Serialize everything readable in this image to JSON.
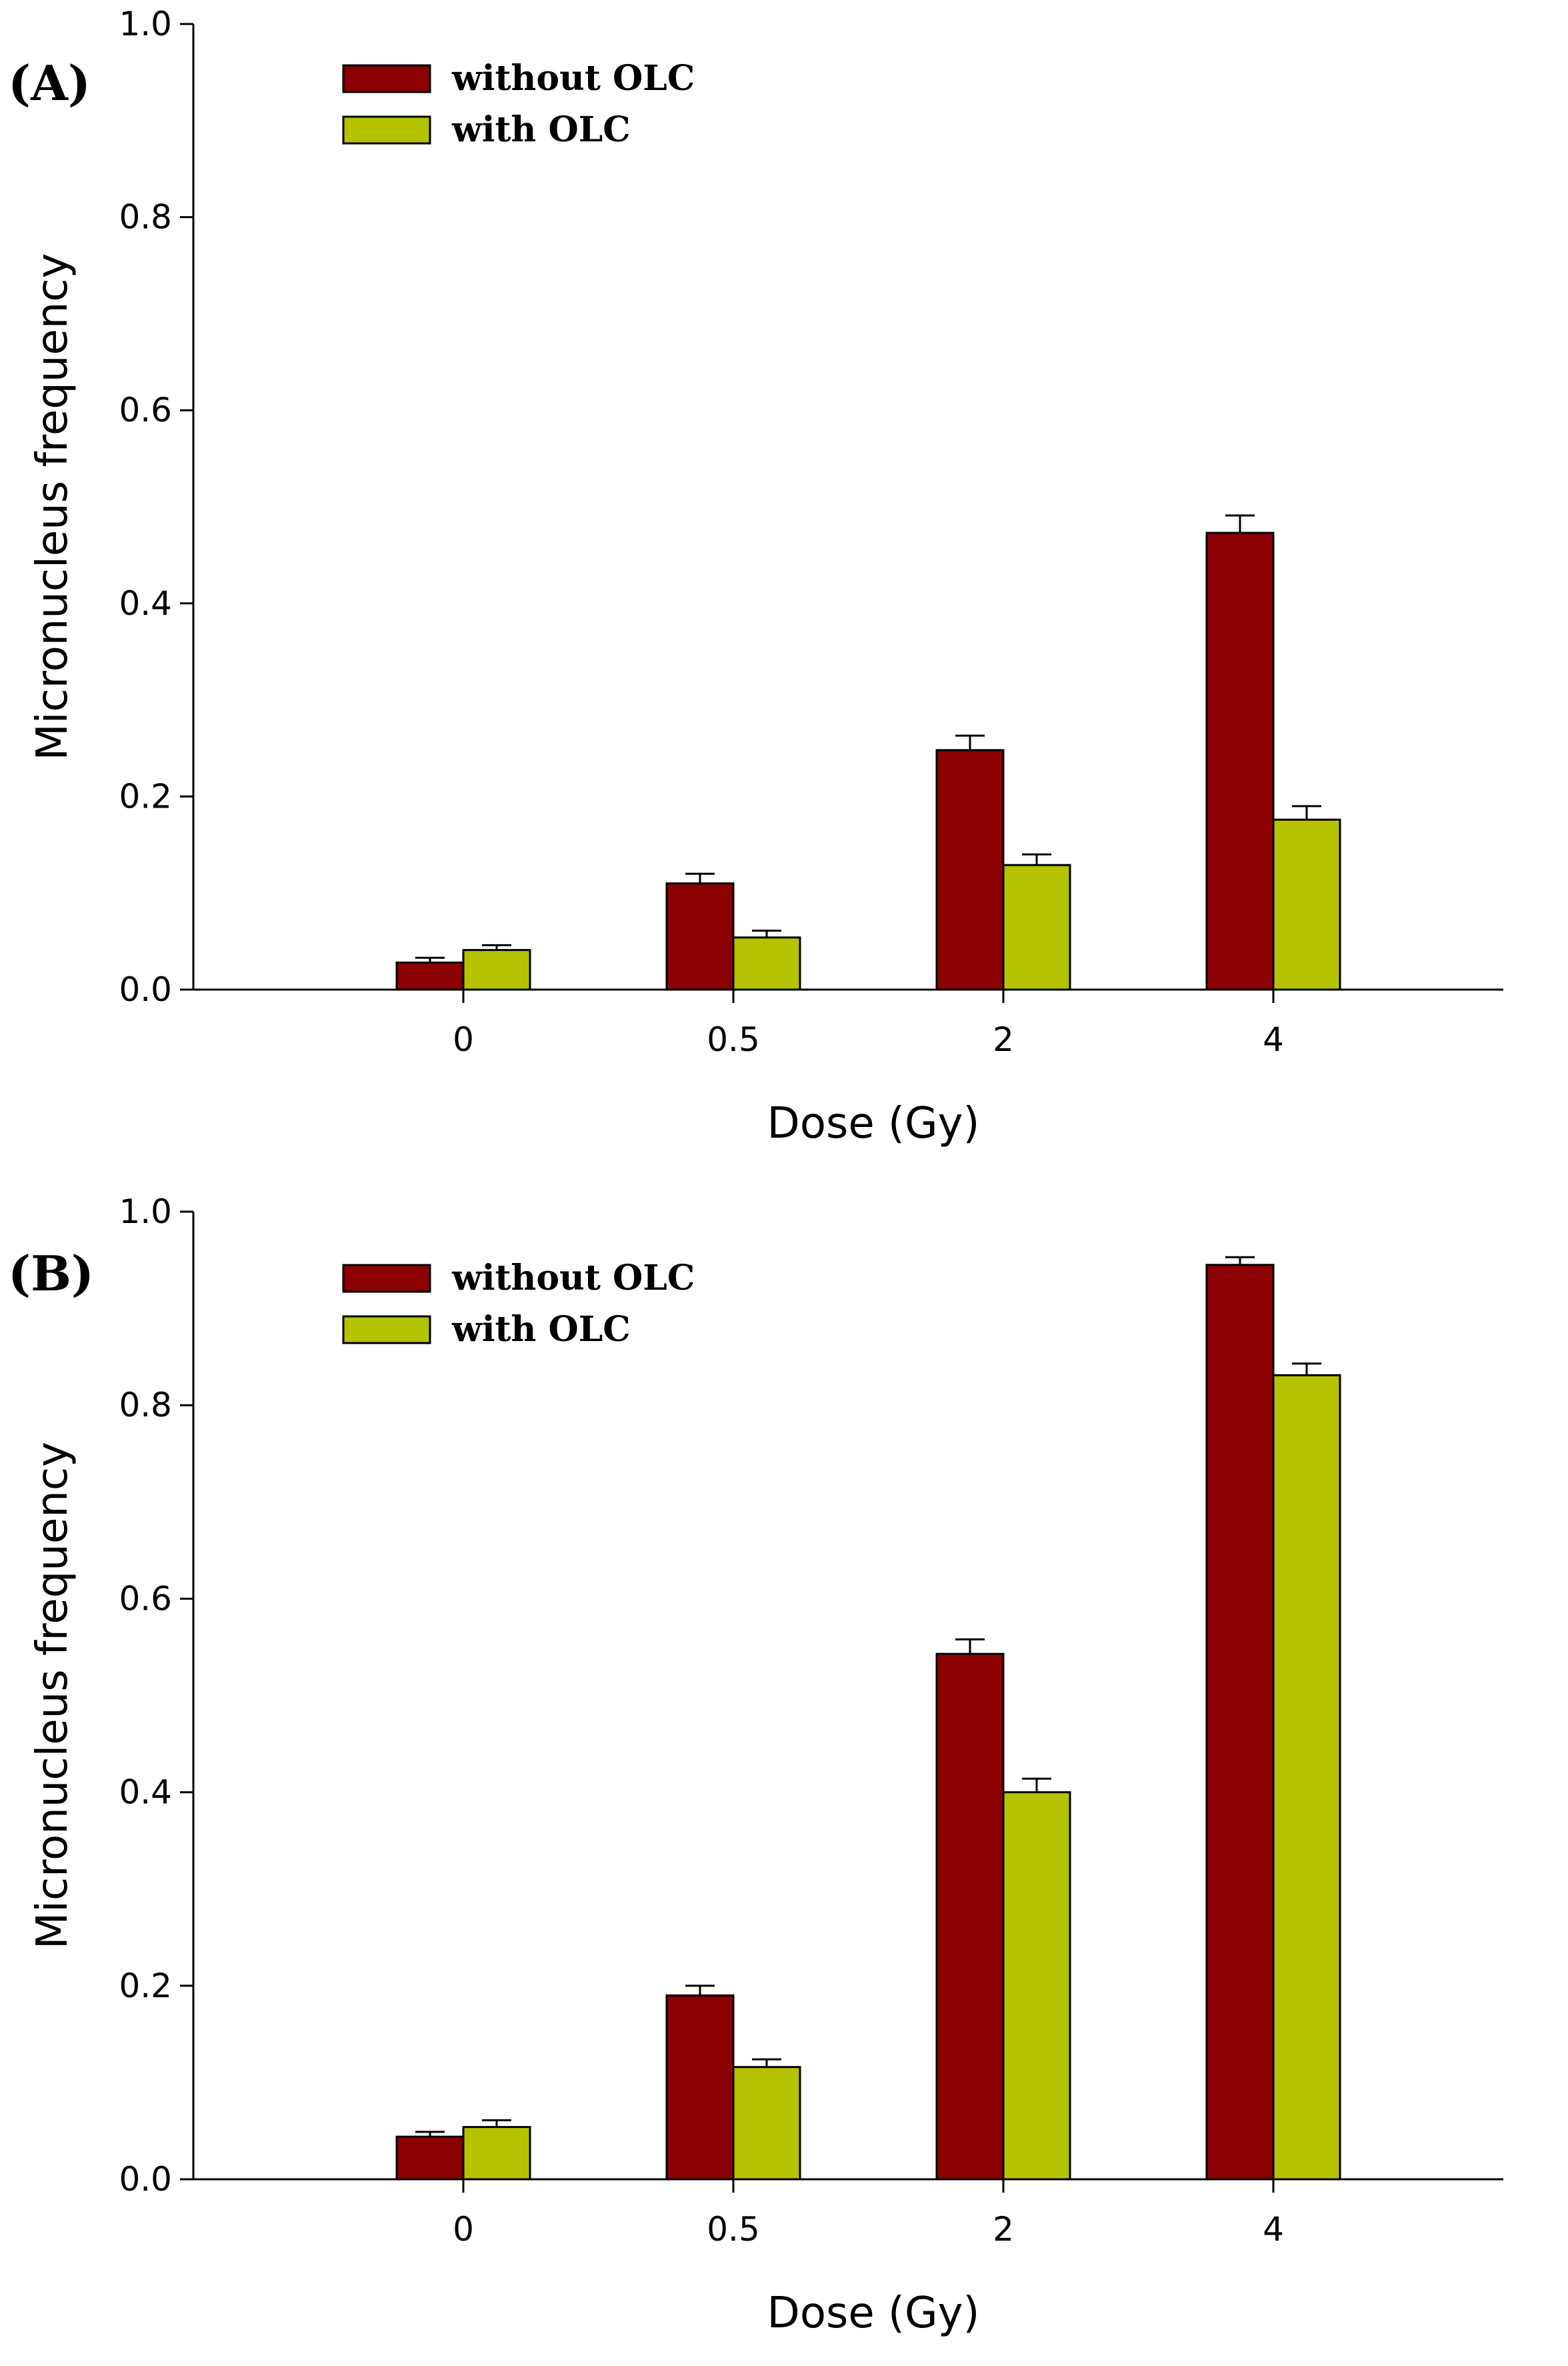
{
  "chart_data": [
    {
      "type": "bar",
      "panel_label": "(A)",
      "categories": [
        "0",
        "0.5",
        "2",
        "4"
      ],
      "series": [
        {
          "name": "without OLC",
          "color": "#8B0000",
          "values": [
            0.028,
            0.11,
            0.248,
            0.473
          ],
          "errors": [
            0.005,
            0.01,
            0.015,
            0.018
          ]
        },
        {
          "name": "with OLC",
          "color": "#B5C200",
          "values": [
            0.041,
            0.054,
            0.129,
            0.176
          ],
          "errors": [
            0.005,
            0.007,
            0.011,
            0.014
          ]
        }
      ],
      "xlabel": "Dose (Gy)",
      "ylabel": "Micronucleus frequency",
      "ylim": [
        0,
        1.0
      ],
      "yticks": [
        "0.0",
        "0.2",
        "0.4",
        "0.6",
        "0.8",
        "1.0"
      ],
      "legend_position": "top-left",
      "grid": false
    },
    {
      "type": "bar",
      "panel_label": "(B)",
      "categories": [
        "0",
        "0.5",
        "2",
        "4"
      ],
      "series": [
        {
          "name": "without OLC",
          "color": "#8B0000",
          "values": [
            0.044,
            0.19,
            0.543,
            0.945
          ],
          "errors": [
            0.005,
            0.01,
            0.015,
            0.008
          ]
        },
        {
          "name": "with OLC",
          "color": "#B5C200",
          "values": [
            0.054,
            0.116,
            0.4,
            0.831
          ],
          "errors": [
            0.007,
            0.008,
            0.014,
            0.012
          ]
        }
      ],
      "xlabel": "Dose (Gy)",
      "ylabel": "Micronucleus frequency",
      "ylim": [
        0,
        1.0
      ],
      "yticks": [
        "0.0",
        "0.2",
        "0.4",
        "0.6",
        "0.8",
        "1.0"
      ],
      "legend_position": "top-left",
      "grid": false
    }
  ]
}
